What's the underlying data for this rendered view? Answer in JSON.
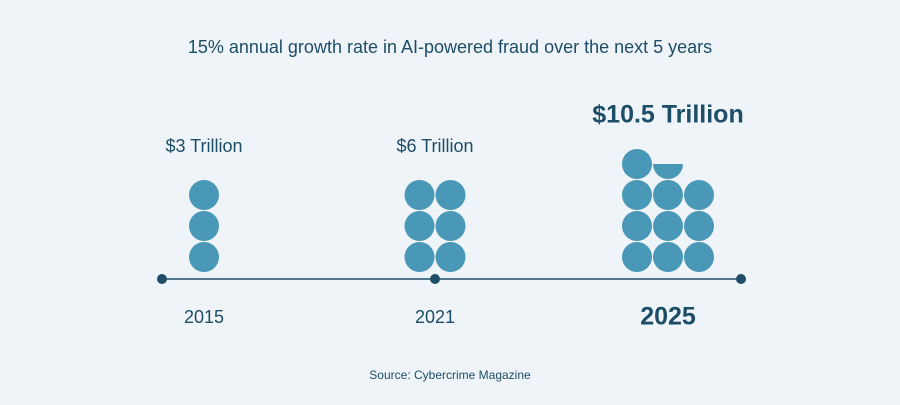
{
  "chart_data": {
    "type": "pictogram",
    "title": "15% annual growth rate in AI-powered fraud over the next 5 years",
    "categories": [
      "2015",
      "2021",
      "2025"
    ],
    "values": [
      3,
      6,
      10.5
    ],
    "value_labels": [
      "$3 Trillion",
      "$6 Trillion",
      "$10.5 Trillion"
    ],
    "color": "#4a98b7",
    "source": "Source: Cybercrime Magazine"
  }
}
